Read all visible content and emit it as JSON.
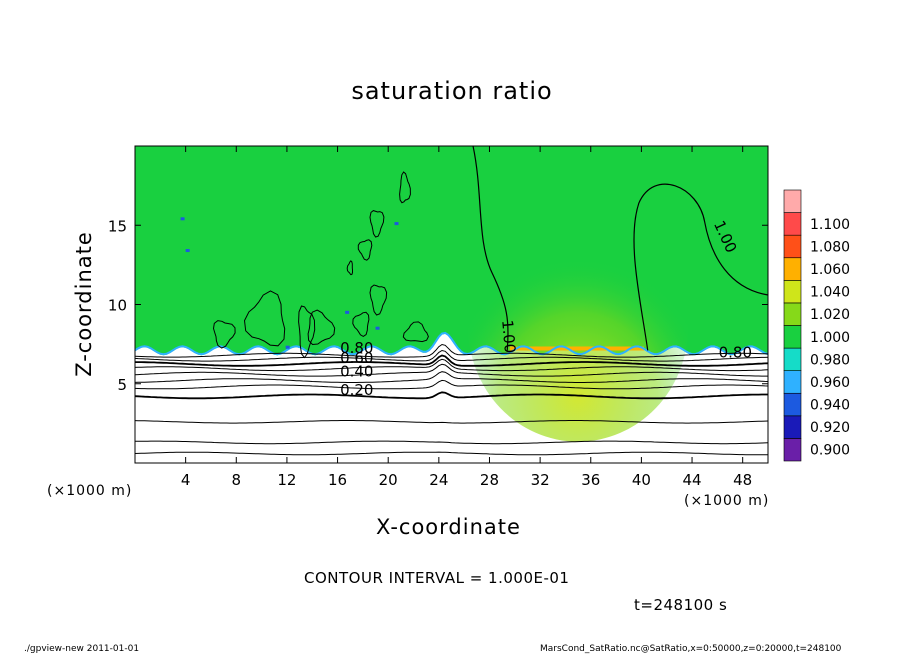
{
  "chart_data": {
    "type": "heatmap",
    "title": "saturation ratio",
    "xlabel": "X-coordinate",
    "ylabel": "Z-coordinate",
    "x_unit_left": "(×1000 m)",
    "x_unit_right": "(×1000 m)",
    "xlim": [
      0,
      50
    ],
    "ylim": [
      0,
      20
    ],
    "x_ticks": [
      4,
      8,
      12,
      16,
      20,
      24,
      28,
      32,
      36,
      40,
      44,
      48
    ],
    "y_ticks": [
      5,
      10,
      15
    ],
    "colorbar": {
      "levels": [
        "0.900",
        "0.920",
        "0.940",
        "0.960",
        "0.980",
        "1.000",
        "1.020",
        "1.040",
        "1.060",
        "1.080",
        "1.100"
      ],
      "colors": [
        "#6a1fa8",
        "#1a1ab8",
        "#1c5ae0",
        "#2fb1ff",
        "#15dcc8",
        "#19d040",
        "#86d919",
        "#cfe51a",
        "#ffb000",
        "#ff5018",
        "#ff4a4a",
        "#ffaaaa"
      ]
    },
    "contour_labels": [
      "0.20",
      "0.40",
      "0.60",
      "0.80",
      "1.00",
      "1.00",
      "0.80"
    ],
    "contour_interval_text": "CONTOUR INTERVAL = 1.000E-01",
    "time_text": "t=248100 s"
  },
  "footer": {
    "left": "./gpview-new  2011-01-01",
    "right": "MarsCond_SatRatio.nc@SatRatio,x=0:50000,z=0:20000,t=248100"
  },
  "colors": {
    "field_green": "#19d040",
    "contour": "#000000"
  }
}
